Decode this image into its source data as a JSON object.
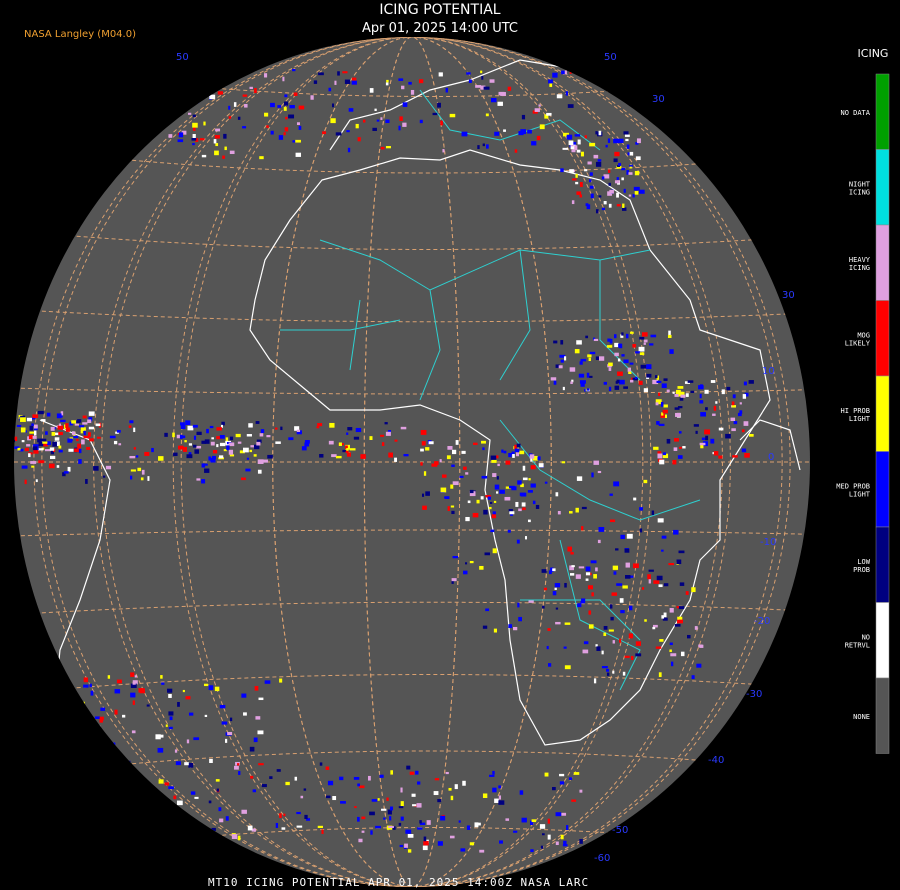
{
  "header": {
    "title": "ICING POTENTIAL",
    "subtitle": "Apr 01, 2025 14:00 UTC",
    "credit": "NASA Langley (M04.0)"
  },
  "legend": {
    "title": "ICING",
    "items": [
      {
        "lines": [
          "NO DATA"
        ],
        "color": "#00a000"
      },
      {
        "lines": [
          "NIGHT",
          "ICING"
        ],
        "color": "#00e0e0"
      },
      {
        "lines": [
          "HEAVY",
          "ICING"
        ],
        "color": "#e0a0e0"
      },
      {
        "lines": [
          "MOG",
          "LIKELY"
        ],
        "color": "#ff0000"
      },
      {
        "lines": [
          "HI PROB",
          "LIGHT"
        ],
        "color": "#ffff00"
      },
      {
        "lines": [
          "MED PROB",
          "LIGHT"
        ],
        "color": "#0000ff"
      },
      {
        "lines": [
          "LOW",
          "PROB"
        ],
        "color": "#000080"
      },
      {
        "lines": [
          "NO",
          "RETRVL"
        ],
        "color": "#ffffff"
      },
      {
        "lines": [
          "NONE"
        ],
        "color": "#555555"
      }
    ]
  },
  "latitude_labels": [
    "50",
    "50",
    "30",
    "30",
    "10",
    "0",
    "-10",
    "-20",
    "-30",
    "-40",
    "-50",
    "-60"
  ],
  "footer": "MT10  ICING POTENTIAL  APR 01, 2025 14:00Z  NASA LARC"
}
